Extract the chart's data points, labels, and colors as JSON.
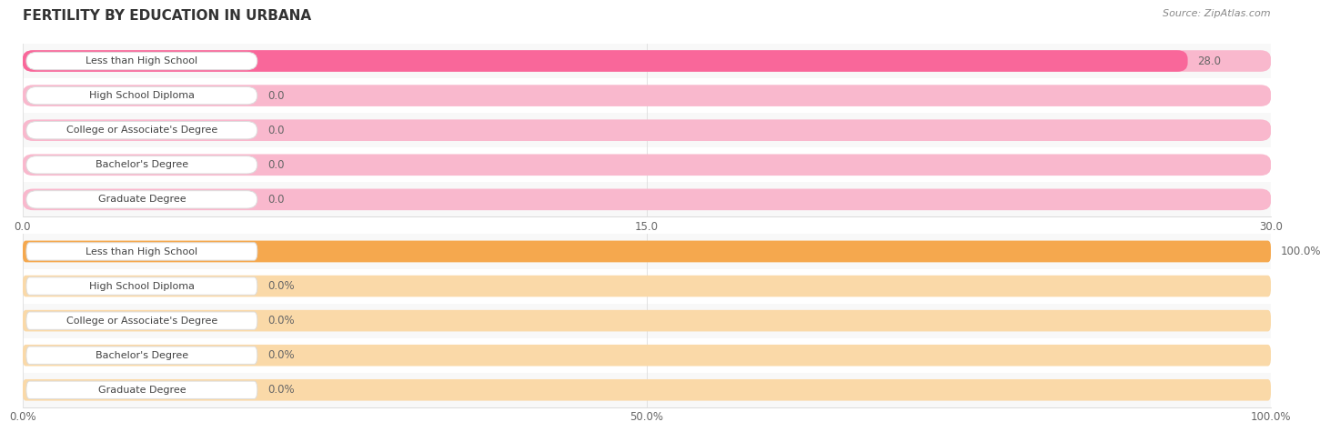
{
  "title": "FERTILITY BY EDUCATION IN URBANA",
  "source": "Source: ZipAtlas.com",
  "top_chart": {
    "categories": [
      "Less than High School",
      "High School Diploma",
      "College or Associate's Degree",
      "Bachelor's Degree",
      "Graduate Degree"
    ],
    "values": [
      28.0,
      0.0,
      0.0,
      0.0,
      0.0
    ],
    "xlim": [
      0,
      30.0
    ],
    "xticks": [
      0.0,
      15.0,
      30.0
    ],
    "xtick_labels": [
      "0.0",
      "15.0",
      "30.0"
    ],
    "bar_color_full": "#F9679A",
    "bar_color_empty": "#F9B8CD",
    "value_label_suffix": "",
    "bar_bg_color": "#F5F5F5"
  },
  "bottom_chart": {
    "categories": [
      "Less than High School",
      "High School Diploma",
      "College or Associate's Degree",
      "Bachelor's Degree",
      "Graduate Degree"
    ],
    "values": [
      100.0,
      0.0,
      0.0,
      0.0,
      0.0
    ],
    "xlim": [
      0,
      100.0
    ],
    "xticks": [
      0.0,
      50.0,
      100.0
    ],
    "xtick_labels": [
      "0.0%",
      "50.0%",
      "100.0%"
    ],
    "bar_color_full": "#F5A84E",
    "bar_color_empty": "#FAD9A8",
    "value_label_suffix": "%",
    "bar_bg_color": "#F5F5F5"
  },
  "label_box_color": "#FFFFFF",
  "label_box_edge_color": "#DDDDDD",
  "label_text_color": "#444444",
  "value_text_color": "#666666",
  "title_color": "#333333",
  "source_color": "#888888",
  "bg_color": "#FFFFFF",
  "row_bg_color": "#F8F8F8",
  "row_sep_color": "#EEEEEE",
  "bar_height": 0.62,
  "label_fontsize": 8.0,
  "value_fontsize": 8.5,
  "title_fontsize": 11,
  "source_fontsize": 8
}
